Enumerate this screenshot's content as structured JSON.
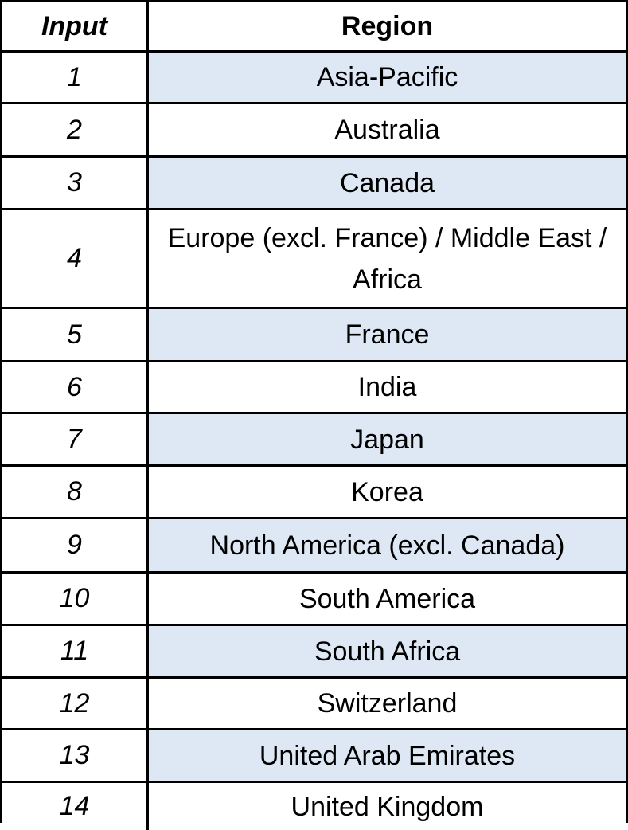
{
  "table": {
    "header": {
      "input": "Input",
      "region": "Region"
    },
    "rows": [
      {
        "input": "1",
        "region": "Asia-Pacific",
        "shaded": true
      },
      {
        "input": "2",
        "region": "Australia",
        "shaded": false
      },
      {
        "input": "3",
        "region": "Canada",
        "shaded": true
      },
      {
        "input": "4",
        "region": "Europe (excl. France) / Middle East / Africa",
        "shaded": false
      },
      {
        "input": "5",
        "region": "France",
        "shaded": true
      },
      {
        "input": "6",
        "region": "India",
        "shaded": false
      },
      {
        "input": "7",
        "region": "Japan",
        "shaded": true
      },
      {
        "input": "8",
        "region": "Korea",
        "shaded": false
      },
      {
        "input": "9",
        "region": "North America (excl. Canada)",
        "shaded": true
      },
      {
        "input": "10",
        "region": "South America",
        "shaded": false
      },
      {
        "input": "11",
        "region": "South Africa",
        "shaded": true
      },
      {
        "input": "12",
        "region": "Switzerland",
        "shaded": false
      },
      {
        "input": "13",
        "region": "United Arab Emirates",
        "shaded": true
      },
      {
        "input": "14",
        "region": "United Kingdom",
        "shaded": false
      }
    ],
    "shade_color": "#dde8f4"
  }
}
